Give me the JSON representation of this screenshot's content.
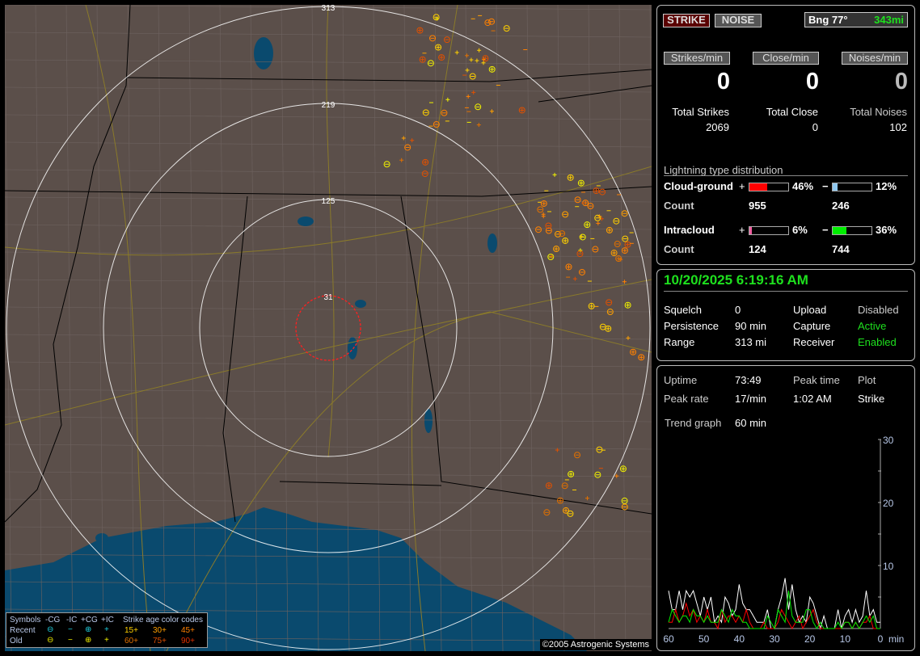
{
  "map": {
    "range_labels": [
      "313",
      "219",
      "125",
      "31"
    ],
    "copyright": "©2005 Astrogenic Systems",
    "colors": {
      "land": "#5b4f4a",
      "water": "#0a4a6e",
      "range_rings": "#ffffff",
      "close_ring": "#ff2020",
      "roads": "#8a7a2a"
    },
    "legend": {
      "symbols_label": "Symbols",
      "cols": [
        "-CG",
        "-IC",
        "+CG",
        "+IC"
      ],
      "recent_label": "Recent",
      "old_label": "Old",
      "age_label": "Strike age color codes",
      "ages_recent": [
        "15+",
        "30+",
        "45+"
      ],
      "ages_old": [
        "60+",
        "75+",
        "90+"
      ],
      "age_colors": [
        "#ffd000",
        "#ffa000",
        "#ff8000",
        "#e07000",
        "#e05000",
        "#e03000"
      ]
    }
  },
  "header": {
    "strike_tab": "STRIKE",
    "noise_tab": "NOISE",
    "bearing": "Bng 77°",
    "distance": "343mi"
  },
  "rates": [
    {
      "label": "Strikes/min",
      "value": "0",
      "total_label": "Total Strikes",
      "total": "2069"
    },
    {
      "label": "Close/min",
      "value": "0",
      "total_label": "Total Close",
      "total": "0"
    },
    {
      "label": "Noises/min",
      "value": "0",
      "total_label": "Total Noises",
      "total": "102"
    }
  ],
  "distribution": {
    "title": "Lightning type distribution",
    "rows": [
      {
        "label": "Cloud-ground",
        "pos_sign": "+",
        "pos_pct": "46%",
        "pos_value": 46,
        "pos_color": "#ff0000",
        "neg_sign": "−",
        "neg_pct": "12%",
        "neg_value": 12,
        "neg_color": "#90c8f0",
        "count_label": "Count",
        "pos_count": "955",
        "neg_count": "246"
      },
      {
        "label": "Intracloud",
        "pos_sign": "+",
        "pos_pct": "6%",
        "pos_value": 6,
        "pos_color": "#f060a0",
        "neg_sign": "−",
        "neg_pct": "36%",
        "neg_value": 36,
        "neg_color": "#00ee00",
        "count_label": "Count",
        "pos_count": "124",
        "neg_count": "744"
      }
    ]
  },
  "status": {
    "datetime": "10/20/2025 6:19:16 AM",
    "items": [
      {
        "label": "Squelch",
        "value": "0",
        "label2": "Upload",
        "value2": "Disabled"
      },
      {
        "label": "Persistence",
        "value": "90 min",
        "label2": "Capture",
        "value2": "Active"
      },
      {
        "label": "Range",
        "value": "313 mi",
        "label2": "Receiver",
        "value2": "Enabled"
      }
    ]
  },
  "stats": {
    "uptime_label": "Uptime",
    "uptime": "73:49",
    "peak_time_label": "Peak time",
    "plot_label": "Plot",
    "peak_rate_label": "Peak rate",
    "peak_rate": "17/min",
    "peak_time": "1:02 AM",
    "plot": "Strike",
    "trend_label": "Trend graph",
    "trend": "60 min"
  },
  "chart_data": {
    "type": "line",
    "xlabel": "min",
    "x_ticks": [
      "60",
      "50",
      "40",
      "30",
      "20",
      "10",
      "0"
    ],
    "y_ticks": [
      "10",
      "20",
      "30"
    ],
    "xlim": [
      60,
      0
    ],
    "ylim": [
      0,
      30
    ],
    "x": [
      60,
      59,
      58,
      57,
      56,
      55,
      54,
      53,
      52,
      51,
      50,
      49,
      48,
      47,
      46,
      45,
      44,
      43,
      42,
      41,
      40,
      39,
      38,
      37,
      36,
      35,
      34,
      33,
      32,
      31,
      30,
      29,
      28,
      27,
      26,
      25,
      24,
      23,
      22,
      21,
      20,
      19,
      18,
      17,
      16,
      15,
      14,
      13,
      12,
      11,
      10,
      9,
      8,
      7,
      6,
      5,
      4,
      3,
      2,
      1,
      0
    ],
    "series": [
      {
        "color": "#ffffff",
        "values": [
          6,
          3,
          3,
          6,
          3,
          6,
          5,
          6,
          4,
          2,
          5,
          3,
          5,
          1,
          2,
          1,
          5,
          4,
          2,
          3,
          7,
          4,
          3,
          3,
          2,
          1,
          1,
          1,
          3,
          0,
          0,
          3,
          5,
          8,
          3,
          7,
          3,
          1,
          2,
          1,
          5,
          4,
          2,
          0,
          2,
          0,
          0,
          0,
          3,
          0,
          2,
          3,
          1,
          3,
          1,
          2,
          6,
          2,
          3,
          1,
          1
        ]
      },
      {
        "color": "#ff0000",
        "values": [
          1,
          1,
          3,
          1,
          2,
          4,
          2,
          3,
          1,
          2,
          1,
          3,
          1,
          1,
          0,
          3,
          1,
          2,
          2,
          1,
          2,
          1,
          3,
          1,
          0,
          0,
          0,
          1,
          0,
          0,
          0,
          1,
          3,
          2,
          1,
          0,
          1,
          2,
          0,
          1,
          2,
          3,
          1,
          0,
          0,
          0,
          0,
          0,
          0,
          0,
          1,
          1,
          0,
          1,
          0,
          1,
          1,
          2,
          0,
          0,
          0
        ]
      },
      {
        "color": "#00ee00",
        "values": [
          1,
          3,
          2,
          1,
          2,
          2,
          1,
          3,
          2,
          2,
          1,
          2,
          1,
          1,
          1,
          3,
          2,
          1,
          3,
          2,
          2,
          1,
          1,
          0,
          0,
          0,
          0,
          0,
          2,
          1,
          0,
          3,
          2,
          1,
          6,
          2,
          1,
          1,
          1,
          3,
          3,
          1,
          0,
          1,
          0,
          0,
          0,
          0,
          1,
          0,
          1,
          1,
          0,
          1,
          0,
          1,
          2,
          1,
          2,
          0,
          0
        ]
      }
    ]
  }
}
